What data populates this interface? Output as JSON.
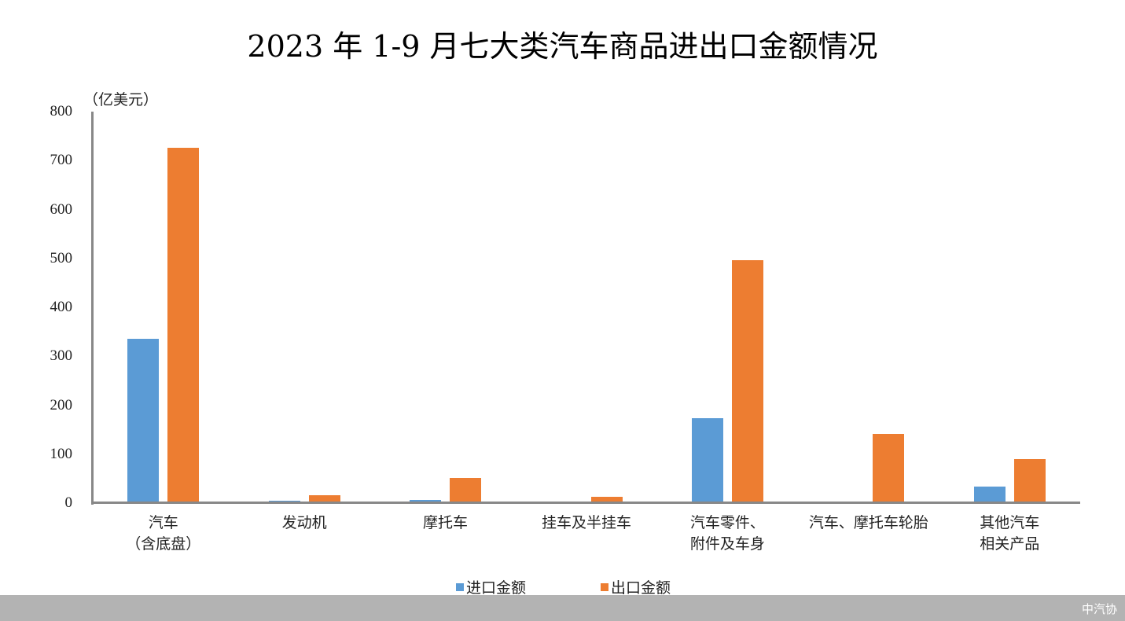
{
  "header": {
    "title": "2023 年 1-9 月七大类汽车商品进出口金额情况"
  },
  "footer": {
    "source": "中汽协"
  },
  "colors": {
    "import": "#5b9bd5",
    "export": "#ed7d31",
    "axis": "#888888",
    "footer_bg": "#b3b3b3"
  },
  "chart_data": {
    "type": "bar",
    "title": "2023 年 1-9 月七大类汽车商品进出口金额情况",
    "xlabel": "",
    "ylabel": "（亿美元）",
    "ylim": [
      0,
      800
    ],
    "yticks": [
      "0",
      "100",
      "200",
      "300",
      "400",
      "500",
      "600",
      "700",
      "800"
    ],
    "grid": false,
    "legend_position": "bottom",
    "categories": [
      "汽车（含底盘）",
      "发动机",
      "摩托车",
      "挂车及半挂车",
      "汽车零件、附件及车身",
      "汽车、摩托车轮胎",
      "其他汽车相关产品"
    ],
    "category_lines": [
      [
        "汽车",
        "（含底盘）"
      ],
      [
        "发动机",
        ""
      ],
      [
        "摩托车",
        ""
      ],
      [
        "挂车及半挂车",
        ""
      ],
      [
        "汽车零件、",
        "附件及车身"
      ],
      [
        "汽车、摩托车轮胎",
        ""
      ],
      [
        "其他汽车",
        "相关产品"
      ]
    ],
    "series": [
      {
        "name": "进口金额",
        "color": "#5b9bd5",
        "values": [
          336,
          5,
          6,
          0.5,
          174,
          3,
          34
        ]
      },
      {
        "name": "出口金额",
        "color": "#ed7d31",
        "values": [
          726,
          16,
          51,
          13,
          497,
          142,
          90
        ]
      }
    ]
  }
}
